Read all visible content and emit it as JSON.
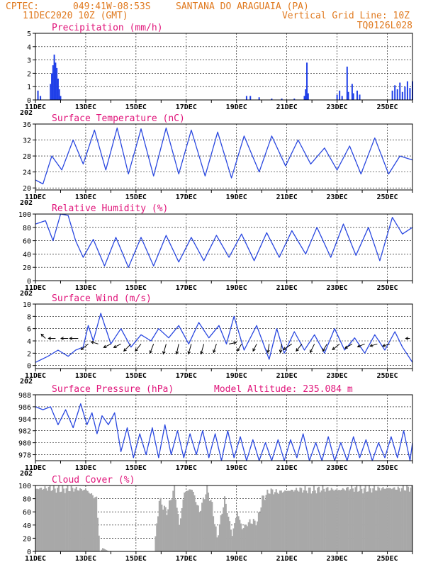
{
  "header": {
    "source": "CPTEC:",
    "coords": "049:41W-08:53S",
    "location": "SANTANA DO ARAGUAIA (PA)",
    "datetime": "11DEC2020 10Z (GMT)",
    "grid_note": "Vertical Grid Line: 10Z",
    "code": "TQ0126L028"
  },
  "x_labels": [
    "11DEC",
    "13DEC",
    "15DEC",
    "17DEC",
    "19DEC",
    "21DEC",
    "23DEC",
    "25DEC"
  ],
  "year_fragment": "202",
  "chart_data": [
    {
      "type": "bar",
      "title": "Precipitation (mm/h)",
      "ylim": [
        0,
        5
      ],
      "yticks": [
        0,
        1,
        2,
        3,
        4,
        5
      ],
      "color": "#1f3fe8",
      "series": [
        {
          "t": 0.1,
          "v": 0.7
        },
        {
          "t": 0.2,
          "v": 0.3
        },
        {
          "t": 0.6,
          "v": 1.2
        },
        {
          "t": 0.65,
          "v": 2.0
        },
        {
          "t": 0.7,
          "v": 2.6
        },
        {
          "t": 0.75,
          "v": 3.4
        },
        {
          "t": 0.8,
          "v": 2.8
        },
        {
          "t": 0.85,
          "v": 2.4
        },
        {
          "t": 0.9,
          "v": 1.6
        },
        {
          "t": 0.95,
          "v": 0.8
        },
        {
          "t": 1.0,
          "v": 0.3
        },
        {
          "t": 8.4,
          "v": 0.3
        },
        {
          "t": 8.55,
          "v": 0.3
        },
        {
          "t": 8.9,
          "v": 0.2
        },
        {
          "t": 9.4,
          "v": 0.1
        },
        {
          "t": 9.8,
          "v": 0.1
        },
        {
          "t": 10.3,
          "v": 0.1
        },
        {
          "t": 10.7,
          "v": 0.3
        },
        {
          "t": 10.75,
          "v": 0.8
        },
        {
          "t": 10.8,
          "v": 2.8
        },
        {
          "t": 10.85,
          "v": 0.5
        },
        {
          "t": 12.0,
          "v": 0.4
        },
        {
          "t": 12.1,
          "v": 0.7
        },
        {
          "t": 12.2,
          "v": 0.3
        },
        {
          "t": 12.4,
          "v": 2.5
        },
        {
          "t": 12.45,
          "v": 0.6
        },
        {
          "t": 12.6,
          "v": 1.2
        },
        {
          "t": 12.65,
          "v": 0.5
        },
        {
          "t": 12.8,
          "v": 0.7
        },
        {
          "t": 12.9,
          "v": 0.4
        },
        {
          "t": 14.2,
          "v": 0.7
        },
        {
          "t": 14.3,
          "v": 1.1
        },
        {
          "t": 14.4,
          "v": 0.8
        },
        {
          "t": 14.5,
          "v": 1.3
        },
        {
          "t": 14.6,
          "v": 0.6
        },
        {
          "t": 14.7,
          "v": 1.0
        },
        {
          "t": 14.8,
          "v": 1.4
        },
        {
          "t": 14.9,
          "v": 0.9
        },
        {
          "t": 15.0,
          "v": 1.4
        }
      ]
    },
    {
      "type": "line",
      "title": "Surface Temperature (nC)",
      "ylim": [
        19.5,
        36
      ],
      "yticks": [
        20,
        24,
        28,
        32,
        36
      ],
      "color": "#2a48e0",
      "t": [
        0,
        0.3,
        0.65,
        1.05,
        1.5,
        1.9,
        2.35,
        2.8,
        3.25,
        3.7,
        4.2,
        4.7,
        5.2,
        5.7,
        6.2,
        6.75,
        7.25,
        7.8,
        8.3,
        8.9,
        9.4,
        9.95,
        10.45,
        10.95,
        11.5,
        12.0,
        12.5,
        12.95,
        13.5,
        14.05,
        14.5,
        15.0
      ],
      "values": [
        22.0,
        21.0,
        28.0,
        24.5,
        32.0,
        26.0,
        34.5,
        24.5,
        35.0,
        23.5,
        34.8,
        23.0,
        35.0,
        23.5,
        34.5,
        23.0,
        34.0,
        22.5,
        33.0,
        24.0,
        33.0,
        25.5,
        32.0,
        26.0,
        30.0,
        24.5,
        30.5,
        23.5,
        32.5,
        23.5,
        28.0,
        27.0
      ]
    },
    {
      "type": "line",
      "title": "Relative Humidity (%)",
      "ylim": [
        0,
        100
      ],
      "yticks": [
        0,
        20,
        40,
        60,
        80,
        100
      ],
      "color": "#2a48e0",
      "t": [
        0,
        0.4,
        0.7,
        1.0,
        1.3,
        1.6,
        1.9,
        2.3,
        2.75,
        3.2,
        3.7,
        4.2,
        4.7,
        5.2,
        5.7,
        6.2,
        6.7,
        7.2,
        7.7,
        8.2,
        8.7,
        9.2,
        9.7,
        10.2,
        10.75,
        11.2,
        11.75,
        12.25,
        12.75,
        13.25,
        13.7,
        14.2,
        14.6,
        15.0
      ],
      "values": [
        85.0,
        90.0,
        60.0,
        100.0,
        98.0,
        60.0,
        35.0,
        62.0,
        22.0,
        65.0,
        20.0,
        65.0,
        22.0,
        68.0,
        28.0,
        65.0,
        30.0,
        68.0,
        35.0,
        70.0,
        30.0,
        72.0,
        35.0,
        75.0,
        40.0,
        80.0,
        35.0,
        85.0,
        38.0,
        80.0,
        30.0,
        95.0,
        70.0,
        80.0
      ]
    },
    {
      "type": "line",
      "title": "Surface Wind (m/s)",
      "ylim": [
        -0.5,
        10
      ],
      "yticks": [
        0,
        2,
        4,
        6,
        8,
        10
      ],
      "color": "#2a48e0",
      "t": [
        0,
        0.5,
        0.9,
        1.3,
        1.6,
        1.9,
        2.1,
        2.3,
        2.6,
        3.0,
        3.4,
        3.8,
        4.2,
        4.6,
        4.9,
        5.3,
        5.7,
        6.1,
        6.5,
        6.9,
        7.3,
        7.6,
        7.9,
        8.3,
        8.8,
        9.3,
        9.6,
        9.9,
        10.3,
        10.7,
        11.1,
        11.5,
        11.9,
        12.3,
        12.7,
        13.1,
        13.5,
        13.9,
        14.3,
        14.6,
        15.0
      ],
      "values": [
        0.5,
        1.5,
        2.5,
        1.5,
        2.5,
        3.0,
        6.5,
        4.0,
        8.5,
        3.5,
        6.0,
        3.0,
        5.0,
        4.0,
        6.0,
        4.5,
        6.5,
        3.5,
        7.0,
        4.5,
        6.5,
        3.5,
        8.0,
        2.5,
        6.5,
        1.0,
        6.0,
        2.0,
        5.5,
        2.5,
        5.0,
        2.0,
        6.0,
        2.5,
        4.5,
        2.0,
        5.0,
        2.5,
        5.5,
        3.0,
        0.5
      ],
      "arrows": [
        {
          "t": 0.4,
          "y": 4.4,
          "dx": -6,
          "dy": -6
        },
        {
          "t": 0.8,
          "y": 4.4,
          "dx": -10,
          "dy": 0
        },
        {
          "t": 1.3,
          "y": 4.4,
          "dx": -10,
          "dy": 0
        },
        {
          "t": 1.7,
          "y": 4.4,
          "dx": -12,
          "dy": 0
        },
        {
          "t": 2.1,
          "y": 3.5,
          "dx": -10,
          "dy": 8
        },
        {
          "t": 2.5,
          "y": 3.5,
          "dx": -10,
          "dy": -3
        },
        {
          "t": 3.0,
          "y": 3.5,
          "dx": -10,
          "dy": 5
        },
        {
          "t": 3.4,
          "y": 3.5,
          "dx": -10,
          "dy": 5
        },
        {
          "t": 3.8,
          "y": 3.5,
          "dx": -10,
          "dy": 10
        },
        {
          "t": 4.2,
          "y": 3.5,
          "dx": -8,
          "dy": 10
        },
        {
          "t": 4.7,
          "y": 3.5,
          "dx": -5,
          "dy": 13
        },
        {
          "t": 5.2,
          "y": 3.5,
          "dx": -4,
          "dy": 14
        },
        {
          "t": 5.7,
          "y": 3.5,
          "dx": -3,
          "dy": 14
        },
        {
          "t": 6.2,
          "y": 3.5,
          "dx": -4,
          "dy": 14
        },
        {
          "t": 6.7,
          "y": 3.5,
          "dx": -4,
          "dy": 14
        },
        {
          "t": 7.2,
          "y": 3.5,
          "dx": -4,
          "dy": 12
        },
        {
          "t": 7.7,
          "y": 3.5,
          "dx": 10,
          "dy": -2
        },
        {
          "t": 8.2,
          "y": 3.5,
          "dx": -6,
          "dy": 10
        },
        {
          "t": 8.8,
          "y": 3.5,
          "dx": -5,
          "dy": 10
        },
        {
          "t": 9.3,
          "y": 3.5,
          "dx": -2,
          "dy": 12
        },
        {
          "t": 9.8,
          "y": 3.5,
          "dx": -2,
          "dy": 12
        },
        {
          "t": 10.2,
          "y": 3.5,
          "dx": -12,
          "dy": 8
        },
        {
          "t": 10.6,
          "y": 3.5,
          "dx": -8,
          "dy": 10
        },
        {
          "t": 11.1,
          "y": 3.5,
          "dx": -6,
          "dy": 12
        },
        {
          "t": 11.6,
          "y": 3.5,
          "dx": -6,
          "dy": 10
        },
        {
          "t": 12.1,
          "y": 3.5,
          "dx": -10,
          "dy": 8
        },
        {
          "t": 12.6,
          "y": 3.5,
          "dx": -10,
          "dy": 6
        },
        {
          "t": 13.1,
          "y": 3.5,
          "dx": -10,
          "dy": 4
        },
        {
          "t": 13.6,
          "y": 3.5,
          "dx": -10,
          "dy": 3
        },
        {
          "t": 14.1,
          "y": 3.5,
          "dx": -10,
          "dy": 3
        },
        {
          "t": 14.9,
          "y": 4.4,
          "dx": -6,
          "dy": 0
        }
      ]
    },
    {
      "type": "line",
      "title": "Surface Pressure (hPa)",
      "subtitle": "Model Altitude: 235.084 m",
      "ylim": [
        977,
        988
      ],
      "yticks": [
        978,
        980,
        982,
        984,
        986,
        988
      ],
      "color": "#2a48e0",
      "t": [
        0,
        0.3,
        0.6,
        0.9,
        1.2,
        1.5,
        1.8,
        2.05,
        2.25,
        2.45,
        2.65,
        2.9,
        3.15,
        3.4,
        3.65,
        3.9,
        4.15,
        4.4,
        4.65,
        4.9,
        5.15,
        5.4,
        5.65,
        5.9,
        6.15,
        6.4,
        6.65,
        6.9,
        7.15,
        7.4,
        7.65,
        7.9,
        8.15,
        8.4,
        8.65,
        8.9,
        9.15,
        9.4,
        9.65,
        9.9,
        10.15,
        10.4,
        10.65,
        10.9,
        11.15,
        11.4,
        11.65,
        11.9,
        12.15,
        12.4,
        12.65,
        12.9,
        13.15,
        13.4,
        13.65,
        13.9,
        14.15,
        14.4,
        14.65,
        14.9,
        15.0
      ],
      "values": [
        986.0,
        985.5,
        986.0,
        983.0,
        985.5,
        982.5,
        986.5,
        983.0,
        985.0,
        981.5,
        984.5,
        983.0,
        985.0,
        978.5,
        982.5,
        977.5,
        981.5,
        978.0,
        982.5,
        977.5,
        983.0,
        978.0,
        982.0,
        977.5,
        981.5,
        978.0,
        982.0,
        977.5,
        981.5,
        977.0,
        982.0,
        977.5,
        981.0,
        977.0,
        980.5,
        977.0,
        980.0,
        977.0,
        980.5,
        977.0,
        980.5,
        977.5,
        981.5,
        977.0,
        980.0,
        977.0,
        981.0,
        977.0,
        980.0,
        977.0,
        981.0,
        977.5,
        980.5,
        977.0,
        980.0,
        977.5,
        981.0,
        977.5,
        982.0,
        977.0,
        980.0
      ]
    },
    {
      "type": "area",
      "title": "Cloud Cover (%)",
      "ylim": [
        0,
        100
      ],
      "yticks": [
        0,
        20,
        40,
        60,
        80,
        100
      ],
      "color": "#a8a8a8",
      "t": [
        0,
        0.5,
        1.0,
        1.5,
        2.0,
        2.4,
        2.55,
        2.65,
        2.9,
        3.1,
        3.3,
        3.6,
        3.9,
        4.2,
        4.35,
        4.5,
        4.7,
        4.9,
        5.2,
        5.5,
        5.7,
        5.9,
        6.2,
        6.5,
        6.8,
        7.0,
        7.2,
        7.5,
        7.8,
        8.0,
        8.2,
        8.5,
        8.8,
        9.0,
        9.3,
        9.6,
        10.0,
        10.5,
        11.0,
        11.5,
        12.0,
        12.5,
        13.0,
        13.5,
        14.0,
        14.5,
        15.0
      ],
      "values": [
        95,
        96,
        94,
        95,
        93,
        80,
        0,
        5,
        0,
        0,
        0,
        0,
        0,
        0,
        0,
        0,
        0,
        78,
        60,
        96,
        40,
        90,
        95,
        60,
        95,
        70,
        20,
        80,
        25,
        60,
        35,
        45,
        45,
        80,
        92,
        90,
        92,
        94,
        93,
        95,
        93,
        96,
        94,
        95,
        96,
        95,
        97
      ]
    }
  ]
}
